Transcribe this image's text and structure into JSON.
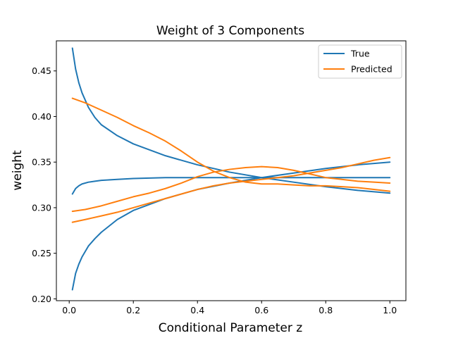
{
  "chart_data": {
    "type": "line",
    "title": "Weight of 3 Components",
    "xlabel": "Conditional Parameter z",
    "ylabel": "weight",
    "xlim": [
      -0.04,
      1.05
    ],
    "ylim": [
      0.198,
      0.483
    ],
    "xticks": [
      0.0,
      0.2,
      0.4,
      0.6,
      0.8,
      1.0
    ],
    "xtick_labels": [
      "0.0",
      "0.2",
      "0.4",
      "0.6",
      "0.8",
      "1.0"
    ],
    "yticks": [
      0.2,
      0.25,
      0.3,
      0.35,
      0.4,
      0.45
    ],
    "ytick_labels": [
      "0.20",
      "0.25",
      "0.30",
      "0.35",
      "0.40",
      "0.45"
    ],
    "grid": false,
    "legend": {
      "position": "top-right",
      "entries": [
        {
          "label": "True",
          "color": "#1f77b4"
        },
        {
          "label": "Predicted",
          "color": "#ff7f0e"
        }
      ]
    },
    "series": [
      {
        "name": "True",
        "color": "#1f77b4",
        "x": [
          0.01,
          0.02,
          0.03,
          0.04,
          0.06,
          0.08,
          0.1,
          0.15,
          0.2,
          0.3,
          0.4,
          0.5,
          0.6,
          0.7,
          0.8,
          0.9,
          1.0
        ],
        "y": [
          0.475,
          0.452,
          0.437,
          0.426,
          0.41,
          0.399,
          0.391,
          0.379,
          0.37,
          0.357,
          0.347,
          0.339,
          0.333,
          0.328,
          0.323,
          0.319,
          0.316
        ]
      },
      {
        "name": "True",
        "color": "#1f77b4",
        "x": [
          0.01,
          0.02,
          0.03,
          0.04,
          0.06,
          0.08,
          0.1,
          0.15,
          0.2,
          0.3,
          0.4,
          0.5,
          0.6,
          0.7,
          0.8,
          0.9,
          1.0
        ],
        "y": [
          0.315,
          0.321,
          0.324,
          0.326,
          0.328,
          0.329,
          0.33,
          0.331,
          0.332,
          0.333,
          0.333,
          0.333,
          0.333,
          0.333,
          0.333,
          0.333,
          0.333
        ]
      },
      {
        "name": "True",
        "color": "#1f77b4",
        "x": [
          0.01,
          0.02,
          0.03,
          0.04,
          0.06,
          0.08,
          0.1,
          0.15,
          0.2,
          0.3,
          0.4,
          0.5,
          0.6,
          0.7,
          0.8,
          0.9,
          1.0
        ],
        "y": [
          0.21,
          0.228,
          0.238,
          0.246,
          0.258,
          0.266,
          0.273,
          0.287,
          0.297,
          0.31,
          0.32,
          0.327,
          0.333,
          0.338,
          0.343,
          0.347,
          0.35
        ]
      },
      {
        "name": "Predicted",
        "color": "#ff7f0e",
        "x": [
          0.01,
          0.05,
          0.1,
          0.15,
          0.2,
          0.25,
          0.3,
          0.35,
          0.4,
          0.45,
          0.5,
          0.55,
          0.6,
          0.65,
          0.7,
          0.75,
          0.8,
          0.85,
          0.9,
          0.95,
          1.0
        ],
        "y": [
          0.42,
          0.415,
          0.407,
          0.399,
          0.39,
          0.382,
          0.373,
          0.362,
          0.35,
          0.34,
          0.333,
          0.328,
          0.326,
          0.326,
          0.325,
          0.324,
          0.324,
          0.323,
          0.322,
          0.32,
          0.318
        ]
      },
      {
        "name": "Predicted",
        "color": "#ff7f0e",
        "x": [
          0.01,
          0.05,
          0.1,
          0.15,
          0.2,
          0.25,
          0.3,
          0.35,
          0.4,
          0.45,
          0.5,
          0.55,
          0.6,
          0.65,
          0.7,
          0.75,
          0.8,
          0.85,
          0.9,
          0.95,
          1.0
        ],
        "y": [
          0.296,
          0.298,
          0.302,
          0.307,
          0.312,
          0.316,
          0.321,
          0.327,
          0.334,
          0.339,
          0.342,
          0.344,
          0.345,
          0.344,
          0.341,
          0.337,
          0.333,
          0.331,
          0.329,
          0.328,
          0.327
        ]
      },
      {
        "name": "Predicted",
        "color": "#ff7f0e",
        "x": [
          0.01,
          0.05,
          0.1,
          0.15,
          0.2,
          0.25,
          0.3,
          0.35,
          0.4,
          0.45,
          0.5,
          0.55,
          0.6,
          0.65,
          0.7,
          0.75,
          0.8,
          0.85,
          0.9,
          0.95,
          1.0
        ],
        "y": [
          0.284,
          0.287,
          0.291,
          0.295,
          0.3,
          0.305,
          0.31,
          0.315,
          0.32,
          0.324,
          0.327,
          0.329,
          0.331,
          0.333,
          0.335,
          0.338,
          0.341,
          0.344,
          0.348,
          0.352,
          0.355
        ]
      }
    ]
  }
}
